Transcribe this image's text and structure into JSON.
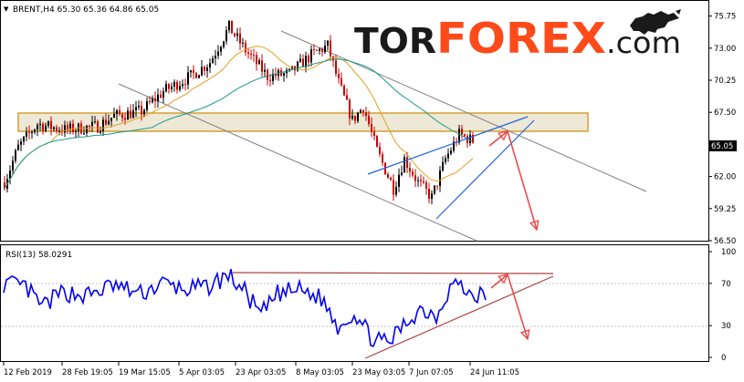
{
  "header": {
    "symbol_text": "BRENT,H4  65.30 65.36 64.86 65.05",
    "brand_tor": "TOR",
    "brand_forex": "FOREX",
    "brand_com": ".com",
    "brand_colors": {
      "tor": "#1a1a1a",
      "forex": "#ff4a1a",
      "com": "#1a1a1a"
    }
  },
  "price_axis": {
    "ticks": [
      "75.75",
      "73.00",
      "70.25",
      "67.50",
      "65.05",
      "62.00",
      "59.25",
      "56.50"
    ],
    "current_price": "65.05"
  },
  "rsi": {
    "label": "RSI(13) 58.0291",
    "ticks": [
      "100",
      "70",
      "30",
      "0"
    ],
    "levels": [
      70,
      30
    ]
  },
  "time_axis": {
    "labels": [
      "12 Feb 2019",
      "28 Feb 19:05",
      "19 Mar 15:05",
      "5 Apr 03:05",
      "23 Apr 03:05",
      "8 May 03:05",
      "23 May 03:05",
      "7 Jun 07:05",
      "24 Jun 11:05"
    ]
  },
  "colors": {
    "candle_up": "#000000",
    "candle_down": "#cc0000",
    "ma_fast": "#e0a020",
    "ma_slow": "#1a9a8a",
    "channel": "#808080",
    "wedge": "#2266dd",
    "arrow": "#ee4444",
    "zone_fill": "#e8e0c8",
    "zone_border": "#d4a030",
    "rsi_line": "#0000ee",
    "rsi_trend": "#aa4444"
  },
  "chart_data": [
    {
      "type": "line",
      "title": "BRENT,H4",
      "series": [
        {
          "name": "BRENT,H4",
          "x": [
            "12 Feb 2019",
            "28 Feb 19:05",
            "19 Mar 15:05",
            "5 Apr 03:05",
            "23 Apr 03:05",
            "8 May 03:05",
            "23 May 03:05",
            "7 Jun 07:05",
            "24 Jun 11:05"
          ],
          "values": [
            61.5,
            66.5,
            67.5,
            69.5,
            74.5,
            71.0,
            67.0,
            61.0,
            65.05
          ]
        }
      ],
      "ylim": [
        56.5,
        76.5
      ],
      "grid": false
    },
    {
      "type": "line",
      "title": "RSI(13) 58.0291",
      "series": [
        {
          "name": "RSI(13)",
          "x": [
            "12 Feb 2019",
            "28 Feb 19:05",
            "19 Mar 15:05",
            "5 Apr 03:05",
            "23 Apr 03:05",
            "8 May 03:05",
            "23 May 03:05",
            "7 Jun 07:05",
            "24 Jun 11:05"
          ],
          "values": [
            70,
            55,
            70,
            68,
            80,
            55,
            20,
            45,
            58.0291
          ]
        }
      ],
      "ylim": [
        0,
        100
      ],
      "grid": false
    }
  ]
}
